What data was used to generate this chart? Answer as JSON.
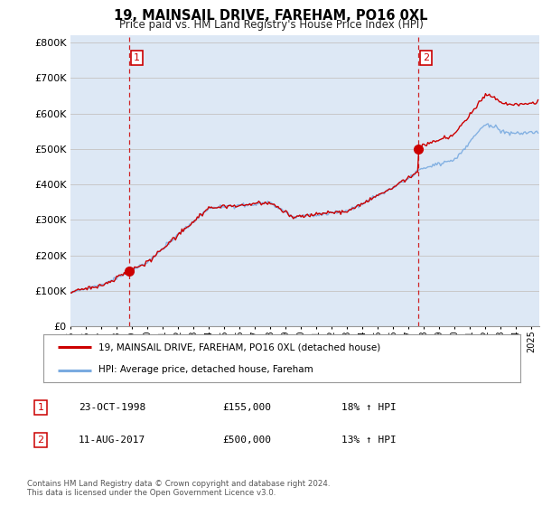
{
  "title": "19, MAINSAIL DRIVE, FAREHAM, PO16 0XL",
  "subtitle": "Price paid vs. HM Land Registry's House Price Index (HPI)",
  "ylabel_ticks": [
    "£0",
    "£100K",
    "£200K",
    "£300K",
    "£400K",
    "£500K",
    "£600K",
    "£700K",
    "£800K"
  ],
  "ytick_vals": [
    0,
    100000,
    200000,
    300000,
    400000,
    500000,
    600000,
    700000,
    800000
  ],
  "ylim": [
    0,
    820000
  ],
  "xlim_start": 1995.0,
  "xlim_end": 2025.5,
  "sale1_x": 1998.81,
  "sale1_y": 155000,
  "sale1_label": "1",
  "sale2_x": 2017.61,
  "sale2_y": 500000,
  "sale2_label": "2",
  "vline1_x": 1998.81,
  "vline2_x": 2017.61,
  "legend_line1": "19, MAINSAIL DRIVE, FAREHAM, PO16 0XL (detached house)",
  "legend_line2": "HPI: Average price, detached house, Fareham",
  "table_row1_num": "1",
  "table_row1_date": "23-OCT-1998",
  "table_row1_price": "£155,000",
  "table_row1_hpi": "18% ↑ HPI",
  "table_row2_num": "2",
  "table_row2_date": "11-AUG-2017",
  "table_row2_price": "£500,000",
  "table_row2_hpi": "13% ↑ HPI",
  "footnote": "Contains HM Land Registry data © Crown copyright and database right 2024.\nThis data is licensed under the Open Government Licence v3.0.",
  "line_red_color": "#cc0000",
  "line_blue_color": "#7aabe0",
  "vline_color": "#cc0000",
  "grid_color": "#c8c8c8",
  "background_color": "#ffffff",
  "plot_bg_color": "#dde8f5"
}
